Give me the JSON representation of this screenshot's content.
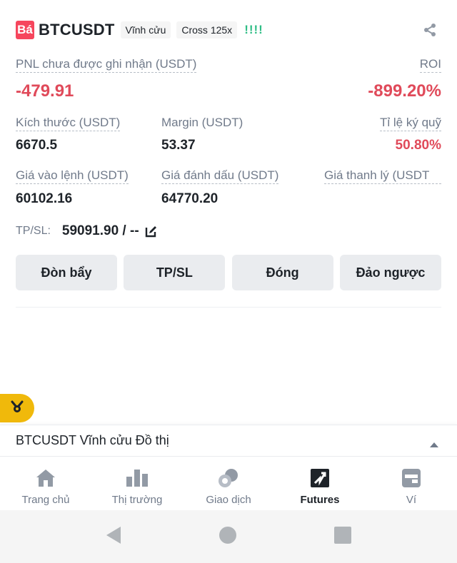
{
  "header": {
    "side_badge": "Bá",
    "symbol": "BTCUSDT",
    "contract_type": "Vĩnh cửu",
    "margin_mode": "Cross 125x",
    "risk_indicator": "!!!!"
  },
  "pnl": {
    "label": "PNL chưa được ghi nhận (USDT)",
    "value": "-479.91",
    "roi_label": "ROI",
    "roi_value": "-899.20%"
  },
  "stats_row1": {
    "size_label": "Kích thước (USDT)",
    "size_value": "6670.5",
    "margin_label": "Margin (USDT)",
    "margin_value": "53.37",
    "ratio_label": "Tỉ lệ ký quỹ",
    "ratio_value": "50.80%"
  },
  "stats_row2": {
    "entry_label": "Giá vào lệnh (USDT)",
    "entry_value": "60102.16",
    "mark_label": "Giá đánh dấu (USDT)",
    "mark_value": "64770.20",
    "liq_label": "Giá thanh lý (USDT"
  },
  "tpsl": {
    "label": "TP/SL:",
    "value": "59091.90 / --"
  },
  "actions": {
    "leverage": "Đòn bẩy",
    "tpsl": "TP/SL",
    "close": "Đóng",
    "reverse": "Đảo ngược"
  },
  "chart_bar": {
    "title": "BTCUSDT Vĩnh cửu Đồ thị"
  },
  "nav": {
    "home": "Trang chủ",
    "markets": "Thị trường",
    "trade": "Giao dịch",
    "futures": "Futures",
    "wallet": "Ví"
  },
  "colors": {
    "negative": "#e04a5a",
    "accent": "#f0b90b",
    "risk_green": "#2ebd85"
  }
}
